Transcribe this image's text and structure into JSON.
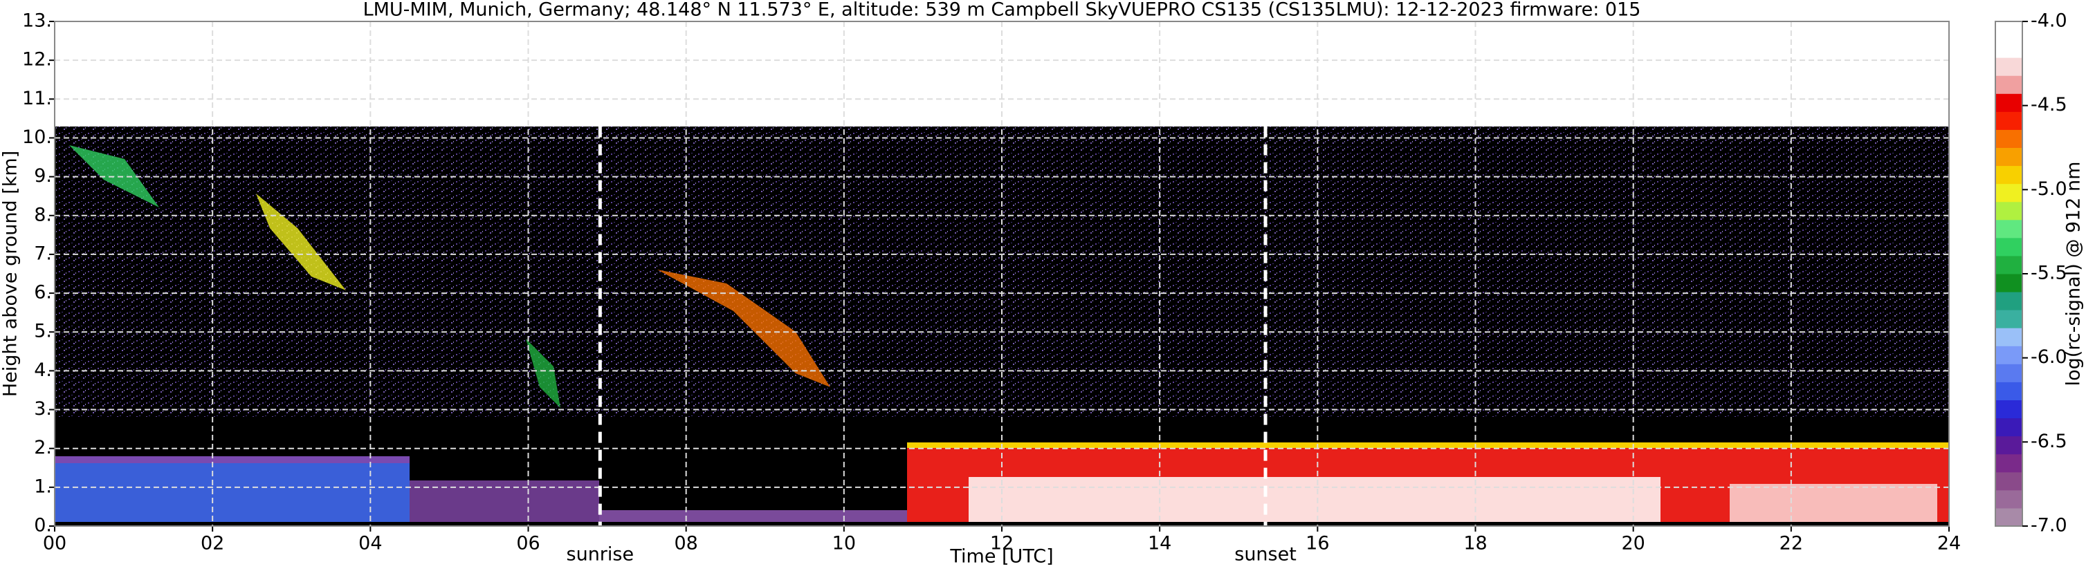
{
  "chart_data": {
    "type": "heatmap",
    "title": "LMU-MIM, Munich, Germany; 48.148° N 11.573° E, altitude: 539 m    Campbell SkyVUEPRO CS135 (CS135LMU): 12-12-2023    firmware: 015",
    "x_label": "Time [UTC]",
    "y_label": "Height above ground [km]",
    "xlim": [
      0,
      24
    ],
    "xticks": [
      {
        "value": 0,
        "label": "00"
      },
      {
        "value": 2,
        "label": "02"
      },
      {
        "value": 4,
        "label": "04"
      },
      {
        "value": 6,
        "label": "06"
      },
      {
        "value": 8,
        "label": "08"
      },
      {
        "value": 10,
        "label": "10"
      },
      {
        "value": 12,
        "label": "12"
      },
      {
        "value": 14,
        "label": "14"
      },
      {
        "value": 16,
        "label": "16"
      },
      {
        "value": 18,
        "label": "18"
      },
      {
        "value": 20,
        "label": "20"
      },
      {
        "value": 22,
        "label": "22"
      },
      {
        "value": 24,
        "label": "24"
      }
    ],
    "ylim": [
      0,
      13
    ],
    "yticks": [
      {
        "value": 0,
        "label": "0."
      },
      {
        "value": 1,
        "label": "1."
      },
      {
        "value": 2,
        "label": "2."
      },
      {
        "value": 3,
        "label": "3."
      },
      {
        "value": 4,
        "label": "4."
      },
      {
        "value": 5,
        "label": "5."
      },
      {
        "value": 6,
        "label": "6."
      },
      {
        "value": 7,
        "label": "7."
      },
      {
        "value": 8,
        "label": "8."
      },
      {
        "value": 9,
        "label": "9."
      },
      {
        "value": 10,
        "label": "10."
      },
      {
        "value": 11,
        "label": "11."
      },
      {
        "value": 12,
        "label": "12."
      },
      {
        "value": 13,
        "label": "13."
      }
    ],
    "grid": true,
    "annotations": [
      {
        "text": "sunrise",
        "x": 6.91
      },
      {
        "text": "sunset",
        "x": 15.34
      }
    ],
    "colorbar": {
      "label": "log(rc-signal) @ 912 nm",
      "lim": [
        -7,
        -4
      ],
      "ticks": [
        {
          "value": -7,
          "label": "-7.0"
        },
        {
          "value": -6.5,
          "label": "-6.5"
        },
        {
          "value": -6,
          "label": "-6.0"
        },
        {
          "value": -5.5,
          "label": "-5.5"
        },
        {
          "value": -5,
          "label": "-5.0"
        },
        {
          "value": -4.5,
          "label": "-4.5"
        },
        {
          "value": -4,
          "label": "-4.0"
        }
      ],
      "colors": [
        "#a88aa8",
        "#9a6a9a",
        "#8a4a8a",
        "#7a2a8a",
        "#5a1a9a",
        "#3a1ab8",
        "#2a2ad8",
        "#3a5ae8",
        "#5a7af0",
        "#7a9af8",
        "#9ac0f8",
        "#3ab0a0",
        "#20a080",
        "#109020",
        "#20b040",
        "#30d060",
        "#60e880",
        "#b0f040",
        "#f0f020",
        "#f8d000",
        "#f8a000",
        "#f87000",
        "#f82000",
        "#e80000",
        "#f0a0a0",
        "#f8d8d8",
        "#ffffff",
        "#ffffff"
      ]
    }
  }
}
